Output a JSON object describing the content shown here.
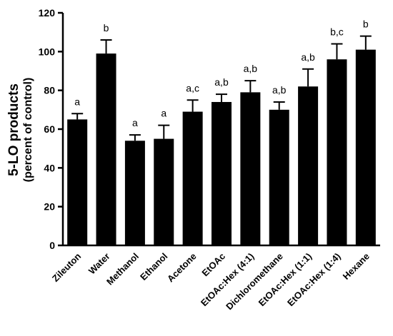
{
  "chart_data": {
    "type": "bar",
    "ylabel": "5-LO products",
    "ylabel_sub": "(percent of control)",
    "ylim": [
      0,
      120
    ],
    "yticks": [
      0,
      20,
      40,
      60,
      80,
      100,
      120
    ],
    "grid": false,
    "categories": [
      "Zileuton",
      "Water",
      "Methanol",
      "Ethanol",
      "Acetone",
      "EtOAc",
      "EtOAc:Hex (4:1)",
      "Dichloromethane",
      "EtOAc:Hex (1:1)",
      "EtOAc:Hex (1:4)",
      "Hexane"
    ],
    "values": [
      65,
      99,
      54,
      55,
      69,
      74,
      79,
      70,
      82,
      96,
      101
    ],
    "errors": [
      3,
      7,
      3,
      7,
      6,
      4,
      6,
      4,
      9,
      8,
      7
    ],
    "significance": [
      "a",
      "b",
      "a",
      "a",
      "a,c",
      "a,b",
      "a,b",
      "a,b",
      "a,b",
      "b,c",
      "b"
    ],
    "bar_color": "#000000"
  }
}
